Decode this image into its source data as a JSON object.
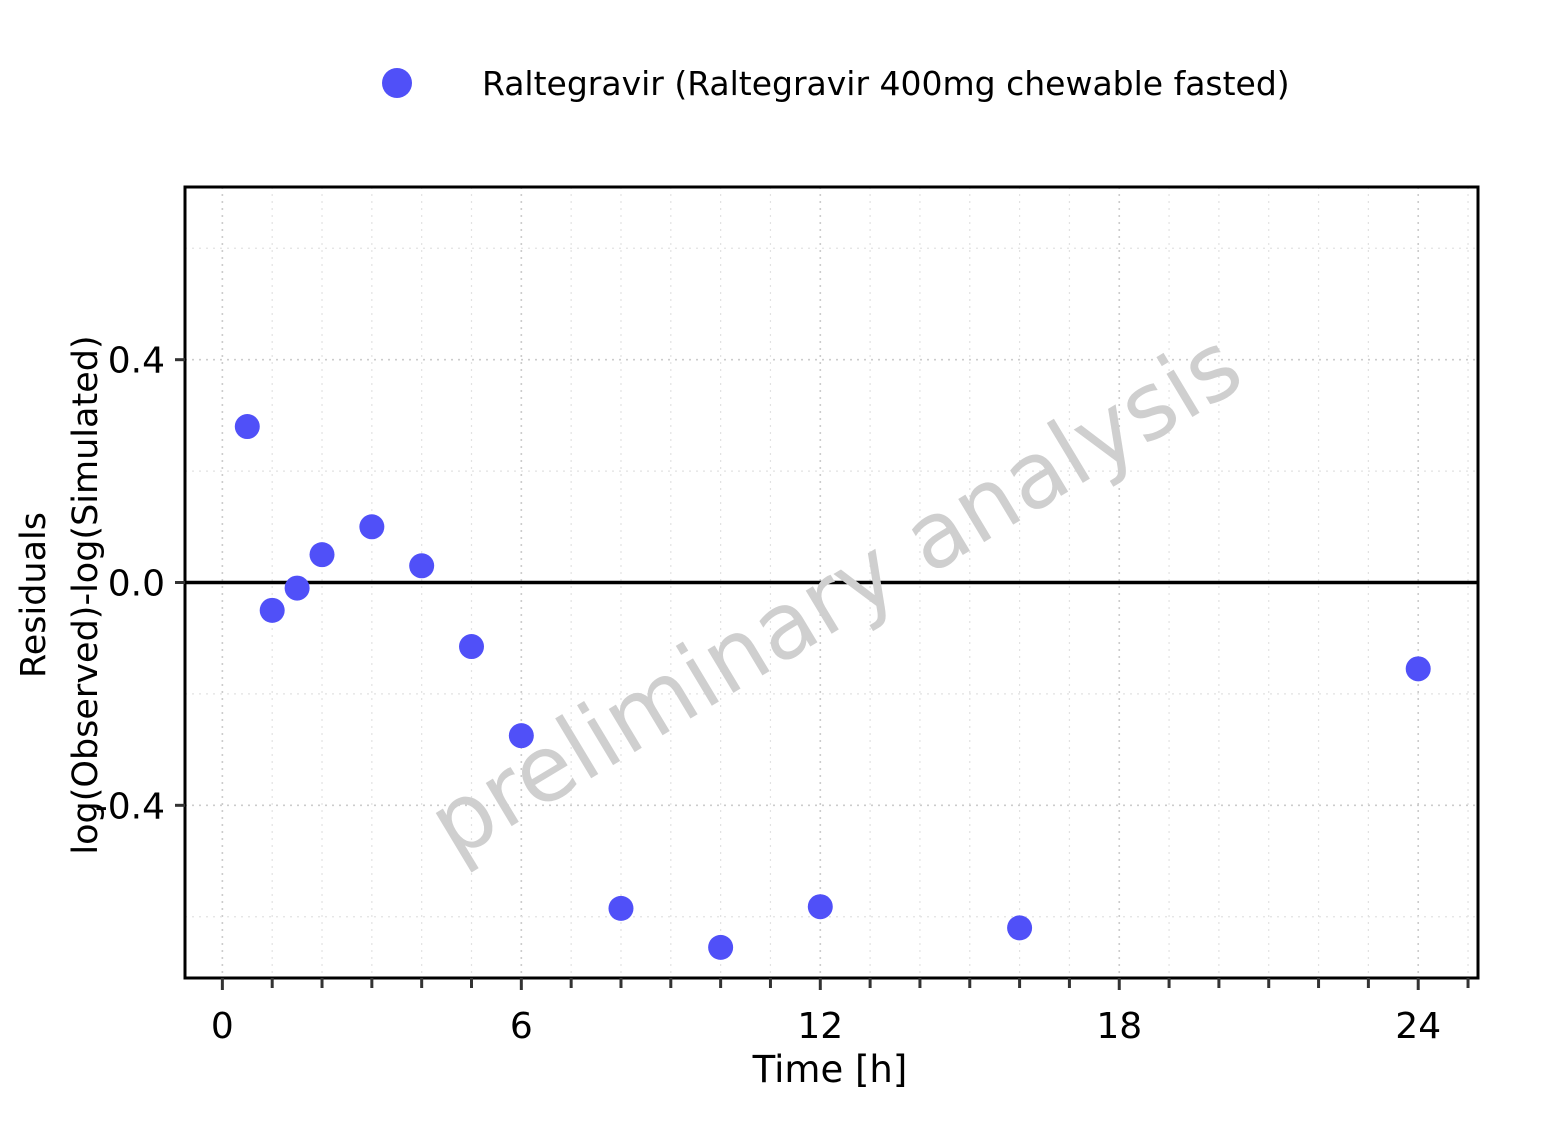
{
  "colors": {
    "series": "#5050f8",
    "watermark": "#cfcfcf",
    "axis": "#000000",
    "grid": "#cccccc"
  },
  "watermark": "preliminary analysis",
  "chart_data": {
    "type": "scatter",
    "title": "",
    "xlabel": "Time [h]",
    "ylabel": [
      "Residuals",
      "log(Observed)-log(Simulated)"
    ],
    "xlim": [
      -0.75,
      25.2
    ],
    "ylim": [
      -0.71,
      0.71
    ],
    "x_ticks": [
      0,
      6,
      12,
      18,
      24
    ],
    "x_tick_labels": [
      "0",
      "6",
      "12",
      "18",
      "24"
    ],
    "y_ticks": [
      0.4,
      0.0,
      -0.4
    ],
    "y_tick_labels": [
      "0.4",
      "0.0",
      "-0.4"
    ],
    "reference_line": 0,
    "grid": true,
    "legend_position": "top",
    "series": [
      {
        "name": "Raltegravir (Raltegravir 400mg chewable fasted)",
        "color": "#5050f8",
        "x": [
          0.5,
          1,
          1.5,
          2,
          3,
          4,
          5,
          6,
          8,
          10,
          12,
          16,
          24
        ],
        "y": [
          0.28,
          -0.05,
          -0.01,
          0.05,
          0.1,
          0.03,
          -0.115,
          -0.275,
          -0.585,
          -0.655,
          -0.582,
          -0.62,
          -0.155
        ]
      }
    ]
  }
}
